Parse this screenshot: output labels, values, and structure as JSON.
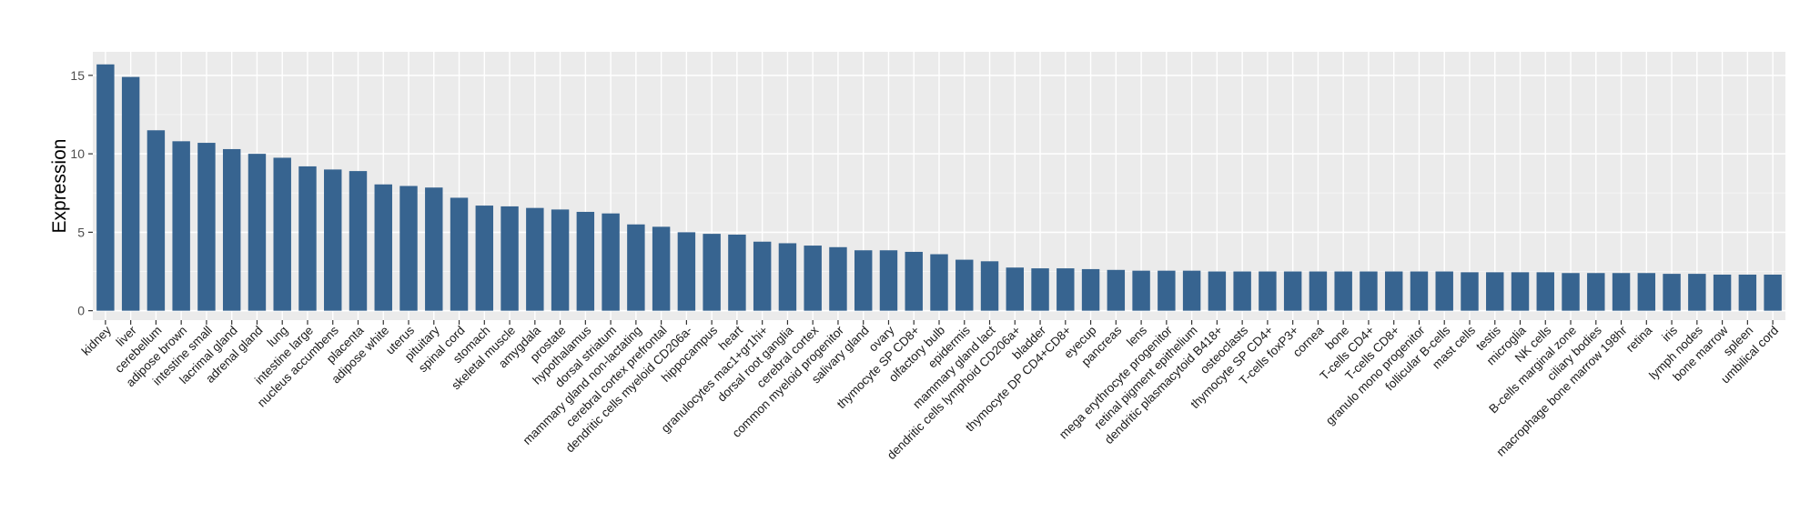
{
  "chart_data": {
    "type": "bar",
    "title": "",
    "xlabel": "",
    "ylabel": "Expression",
    "ylim": [
      -0.6,
      16.5
    ],
    "yticks": [
      0,
      5,
      10,
      15
    ],
    "grid": true,
    "bar_color": "#376490",
    "panel_color": "#EBEBEB",
    "categories": [
      "kidney",
      "liver",
      "cerebellum",
      "adipose brown",
      "intestine small",
      "lacrimal gland",
      "adrenal gland",
      "lung",
      "intestine large",
      "nucleus accumbens",
      "placenta",
      "adipose white",
      "uterus",
      "pituitary",
      "spinal cord",
      "stomach",
      "skeletal muscle",
      "amygdala",
      "prostate",
      "hypothalamus",
      "dorsal striatum",
      "mammary gland non-lactating",
      "cerebral cortex prefrontal",
      "dendritic cells myeloid CD206a-",
      "hippocampus",
      "heart",
      "granulocytes mac1+gr1hi+",
      "dorsal root ganglia",
      "cerebral cortex",
      "common myeloid progenitor",
      "salivary gland",
      "ovary",
      "thymocyte SP CD8+",
      "olfactory bulb",
      "epidermis",
      "mammary gland lact",
      "dendritic cells lymphoid CD206a+",
      "bladder",
      "thymocyte DP CD4+CD8+",
      "eyecup",
      "pancreas",
      "lens",
      "mega erythrocyte progenitor",
      "retinal pigment epithelium",
      "dendritic plasmacytoid B418+",
      "osteoclasts",
      "thymocyte SP CD4+",
      "T-cells foxP3+",
      "cornea",
      "bone",
      "T-cells CD4+",
      "T-cells CD8+",
      "granulo mono progenitor",
      "follicular B-cells",
      "mast cells",
      "testis",
      "microglia",
      "NK cells",
      "B-cells marginal zone",
      "ciliary bodies",
      "macrophage bone marrow 198hr",
      "retina",
      "iris",
      "lymph nodes",
      "bone marrow",
      "spleen",
      "umbilical cord"
    ],
    "values": [
      15.7,
      14.9,
      11.5,
      10.8,
      10.7,
      10.3,
      10.0,
      9.75,
      9.2,
      9.0,
      8.9,
      8.05,
      7.95,
      7.85,
      7.2,
      6.7,
      6.65,
      6.55,
      6.45,
      6.3,
      6.2,
      5.5,
      5.35,
      5.0,
      4.9,
      4.85,
      4.4,
      4.3,
      4.15,
      4.05,
      3.85,
      3.85,
      3.75,
      3.6,
      3.25,
      3.15,
      2.75,
      2.7,
      2.7,
      2.65,
      2.6,
      2.55,
      2.55,
      2.55,
      2.5,
      2.5,
      2.5,
      2.5,
      2.5,
      2.5,
      2.5,
      2.5,
      2.5,
      2.5,
      2.45,
      2.45,
      2.45,
      2.45,
      2.4,
      2.4,
      2.4,
      2.4,
      2.35,
      2.35,
      2.3,
      2.3,
      2.3
    ]
  }
}
